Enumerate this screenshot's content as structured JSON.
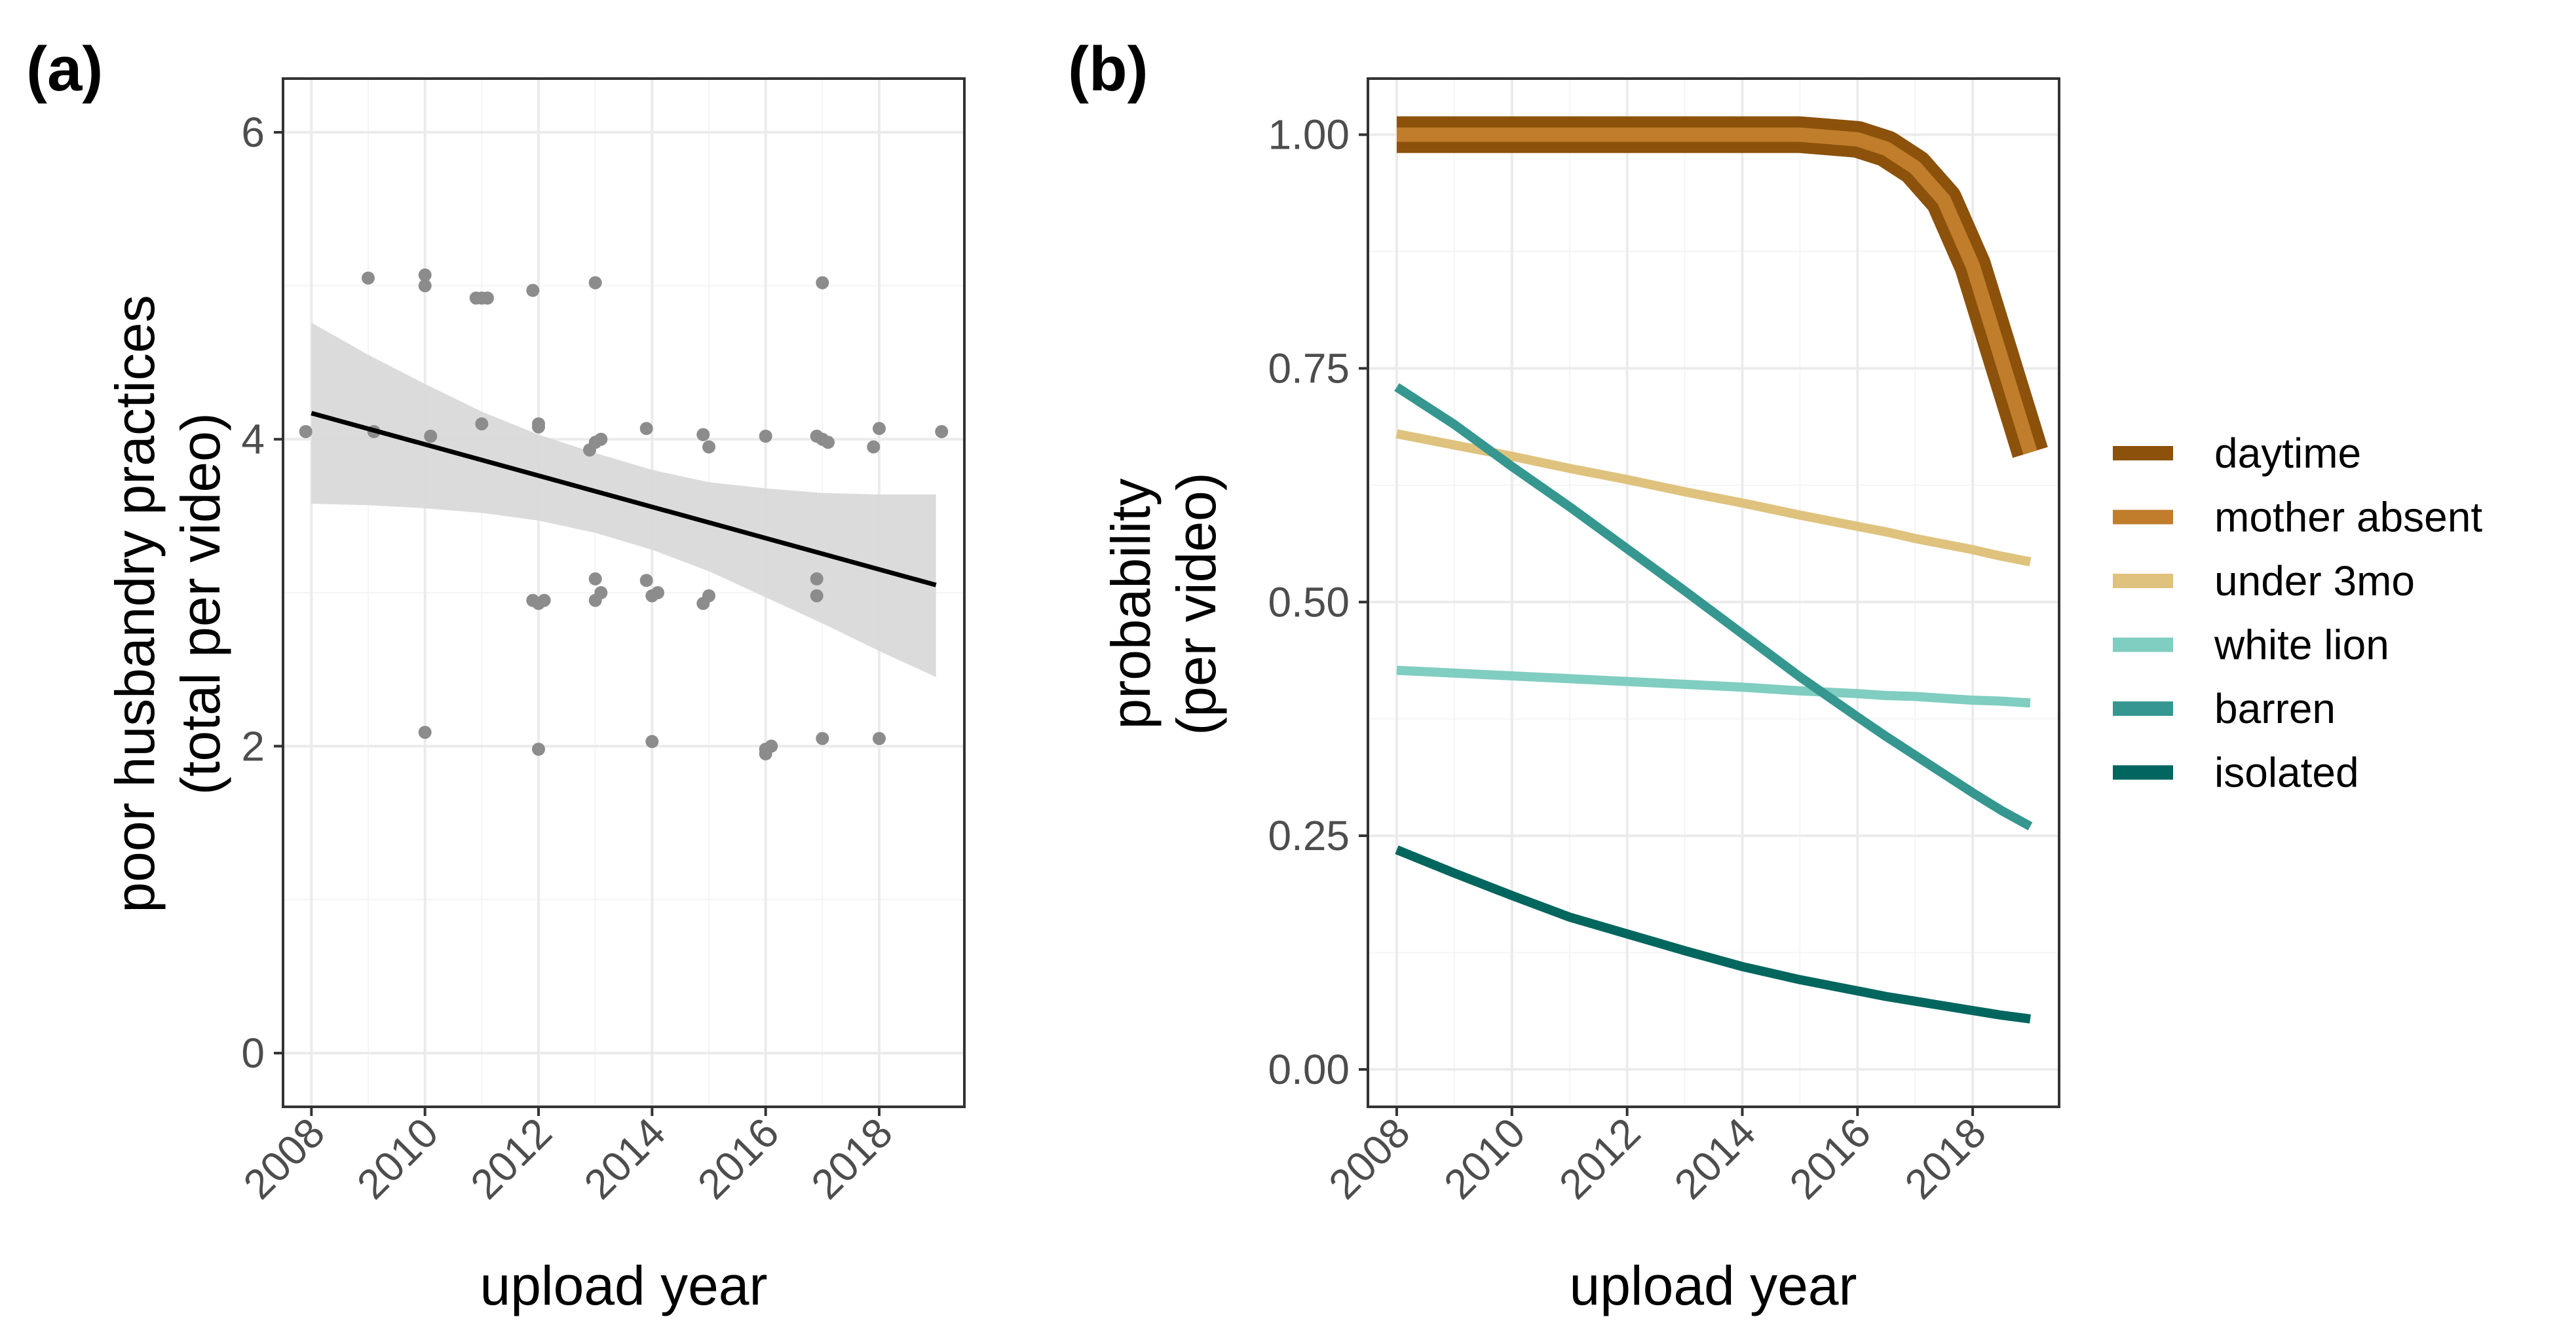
{
  "chart_data": [
    {
      "panel": "(a)",
      "type": "scatter",
      "xlabel": "upload year",
      "ylabel": "poor husbandry practices",
      "ylabel2": "(total per video)",
      "xlim": [
        2007.5,
        2019.5
      ],
      "ylim": [
        -0.35,
        6.35
      ],
      "xticks": [
        2008,
        2010,
        2012,
        2014,
        2016,
        2018
      ],
      "yticks": [
        0,
        2,
        4,
        6
      ],
      "points": [
        [
          2007.9,
          4.05
        ],
        [
          2009.0,
          5.05
        ],
        [
          2009.1,
          4.05
        ],
        [
          2010.0,
          5.07
        ],
        [
          2010.0,
          5.0
        ],
        [
          2010.1,
          4.02
        ],
        [
          2010.0,
          2.09
        ],
        [
          2010.9,
          4.92
        ],
        [
          2011.0,
          4.92
        ],
        [
          2011.1,
          4.92
        ],
        [
          2011.0,
          4.1
        ],
        [
          2011.9,
          4.97
        ],
        [
          2012.0,
          4.1
        ],
        [
          2012.0,
          4.08
        ],
        [
          2011.9,
          2.95
        ],
        [
          2012.0,
          2.93
        ],
        [
          2012.1,
          2.95
        ],
        [
          2012.0,
          1.98
        ],
        [
          2012.9,
          3.93
        ],
        [
          2013.0,
          3.98
        ],
        [
          2013.1,
          4.0
        ],
        [
          2013.0,
          5.02
        ],
        [
          2013.0,
          3.09
        ],
        [
          2013.0,
          2.95
        ],
        [
          2013.1,
          3.0
        ],
        [
          2013.9,
          4.07
        ],
        [
          2013.9,
          3.08
        ],
        [
          2014.0,
          2.98
        ],
        [
          2014.1,
          3.0
        ],
        [
          2014.0,
          2.03
        ],
        [
          2014.9,
          4.03
        ],
        [
          2015.0,
          3.95
        ],
        [
          2014.9,
          2.93
        ],
        [
          2015.0,
          2.98
        ],
        [
          2016.0,
          4.02
        ],
        [
          2016.0,
          1.98
        ],
        [
          2016.0,
          1.95
        ],
        [
          2016.1,
          2.0
        ],
        [
          2016.9,
          4.02
        ],
        [
          2017.0,
          5.02
        ],
        [
          2017.0,
          4.0
        ],
        [
          2017.1,
          3.98
        ],
        [
          2016.9,
          3.09
        ],
        [
          2016.9,
          2.98
        ],
        [
          2017.0,
          2.05
        ],
        [
          2017.9,
          3.95
        ],
        [
          2018.0,
          4.07
        ],
        [
          2018.0,
          2.05
        ],
        [
          2019.1,
          4.05
        ]
      ],
      "trend": {
        "x": [
          2008,
          2019
        ],
        "y": [
          4.17,
          3.05
        ]
      },
      "ribbon": {
        "x": [
          2008,
          2009,
          2010,
          2011,
          2012,
          2013,
          2014,
          2015,
          2016,
          2017,
          2018,
          2019
        ],
        "upper": [
          4.76,
          4.55,
          4.36,
          4.18,
          4.03,
          3.91,
          3.8,
          3.72,
          3.68,
          3.65,
          3.64,
          3.64
        ],
        "lower": [
          3.58,
          3.57,
          3.55,
          3.52,
          3.47,
          3.39,
          3.28,
          3.14,
          2.97,
          2.8,
          2.62,
          2.45
        ]
      },
      "colors": {
        "points": "#8c8c8c",
        "trend": "#000000",
        "ribbon": "#d9d9d9"
      }
    },
    {
      "panel": "(b)",
      "type": "line",
      "xlabel": "upload year",
      "ylabel": "probability",
      "ylabel2": "(per video)",
      "xlim": [
        2007.5,
        2019.5
      ],
      "ylim": [
        -0.04,
        1.06
      ],
      "xticks": [
        2008,
        2010,
        2012,
        2014,
        2016,
        2018
      ],
      "yticks": [
        0.0,
        0.25,
        0.5,
        0.75,
        1.0
      ],
      "ytick_labels": [
        "0.00",
        "0.25",
        "0.50",
        "0.75",
        "1.00"
      ],
      "x": [
        2008,
        2009,
        2010,
        2011,
        2012,
        2013,
        2014,
        2015,
        2016,
        2016.5,
        2017,
        2017.5,
        2018,
        2018.5,
        2019
      ],
      "series": [
        {
          "name": "daytime",
          "color": "#8c510a",
          "values": [
            1.0,
            1.0,
            1.0,
            1.0,
            1.0,
            1.0,
            1.0,
            1.0,
            0.995,
            0.985,
            0.965,
            0.93,
            0.86,
            0.76,
            0.66
          ]
        },
        {
          "name": "mother absent",
          "color": "#c07d2c",
          "values": [
            1.0,
            1.0,
            1.0,
            1.0,
            1.0,
            1.0,
            1.0,
            1.0,
            0.995,
            0.985,
            0.965,
            0.93,
            0.86,
            0.76,
            0.66
          ]
        },
        {
          "name": "under 3mo",
          "color": "#dfc27d",
          "values": [
            0.68,
            0.668,
            0.656,
            0.643,
            0.631,
            0.618,
            0.606,
            0.593,
            0.581,
            0.575,
            0.568,
            0.562,
            0.556,
            0.549,
            0.543
          ]
        },
        {
          "name": "white lion",
          "color": "#80cdc1",
          "values": [
            0.427,
            0.424,
            0.421,
            0.418,
            0.415,
            0.412,
            0.409,
            0.405,
            0.402,
            0.4,
            0.399,
            0.397,
            0.395,
            0.394,
            0.392
          ]
        },
        {
          "name": "barren",
          "color": "#35978f",
          "values": [
            0.73,
            0.69,
            0.645,
            0.602,
            0.557,
            0.512,
            0.466,
            0.42,
            0.377,
            0.356,
            0.336,
            0.316,
            0.296,
            0.277,
            0.26
          ]
        },
        {
          "name": "isolated",
          "color": "#01665e",
          "values": [
            0.235,
            0.21,
            0.186,
            0.163,
            0.145,
            0.127,
            0.11,
            0.096,
            0.084,
            0.078,
            0.073,
            0.068,
            0.063,
            0.058,
            0.054
          ]
        }
      ],
      "legend_position": "right"
    }
  ]
}
